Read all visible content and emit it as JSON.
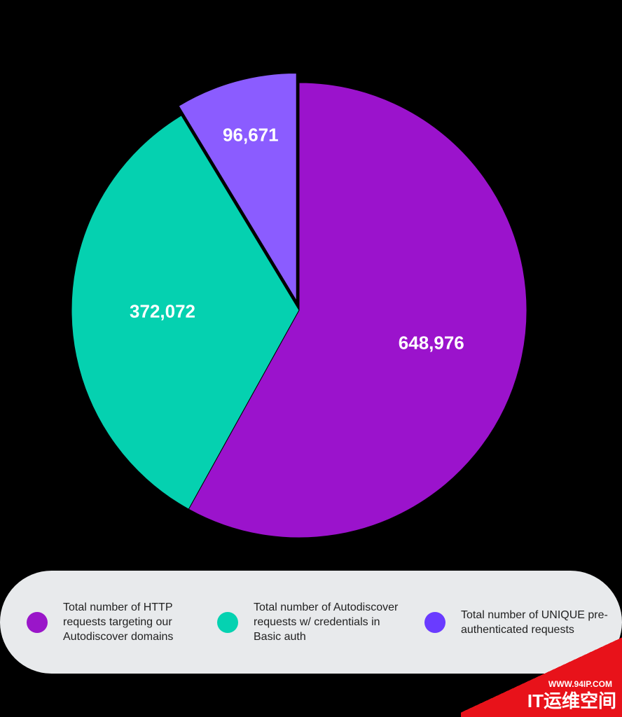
{
  "chart_data": {
    "type": "pie",
    "categories": [
      "Total number of HTTP requests targeting our Autodiscover domains",
      "Total number of Autodiscover requests w/ credentials in Basic auth",
      "Total number of UNIQUE pre-authenticated requests"
    ],
    "values": [
      648976,
      372072,
      96671
    ],
    "value_labels": [
      "648,976",
      "372,072",
      "96,671"
    ],
    "colors": [
      "#9b13cc",
      "#05d1b0",
      "#8b5cff"
    ],
    "legend_colors": [
      "#9a16c9",
      "#05d2b1",
      "#6a3bff"
    ],
    "legend": "bottom"
  },
  "watermark": {
    "site": "WWW.94IP.COM",
    "name": "IT运维空间"
  }
}
